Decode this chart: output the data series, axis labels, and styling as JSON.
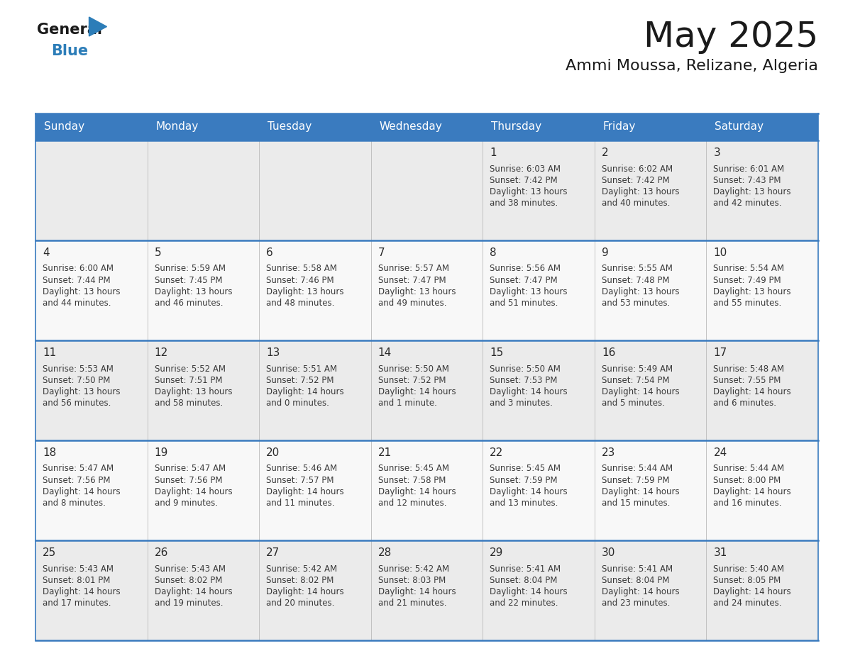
{
  "title": "May 2025",
  "subtitle": "Ammi Moussa, Relizane, Algeria",
  "header_color": "#3a7bbf",
  "header_text_color": "#ffffff",
  "day_names": [
    "Sunday",
    "Monday",
    "Tuesday",
    "Wednesday",
    "Thursday",
    "Friday",
    "Saturday"
  ],
  "bg_color": "#ffffff",
  "cell_bg_row0": "#ebebeb",
  "cell_bg_row1": "#f8f8f8",
  "text_color": "#333333",
  "line_color": "#3a7bbf",
  "calendar_data": [
    [
      {
        "day": "",
        "sunrise": "",
        "sunset": "",
        "daylight_h": "",
        "daylight_m": ""
      },
      {
        "day": "",
        "sunrise": "",
        "sunset": "",
        "daylight_h": "",
        "daylight_m": ""
      },
      {
        "day": "",
        "sunrise": "",
        "sunset": "",
        "daylight_h": "",
        "daylight_m": ""
      },
      {
        "day": "",
        "sunrise": "",
        "sunset": "",
        "daylight_h": "",
        "daylight_m": ""
      },
      {
        "day": "1",
        "sunrise": "6:03 AM",
        "sunset": "7:42 PM",
        "daylight_h": "13 hours",
        "daylight_m": "and 38 minutes."
      },
      {
        "day": "2",
        "sunrise": "6:02 AM",
        "sunset": "7:42 PM",
        "daylight_h": "13 hours",
        "daylight_m": "and 40 minutes."
      },
      {
        "day": "3",
        "sunrise": "6:01 AM",
        "sunset": "7:43 PM",
        "daylight_h": "13 hours",
        "daylight_m": "and 42 minutes."
      }
    ],
    [
      {
        "day": "4",
        "sunrise": "6:00 AM",
        "sunset": "7:44 PM",
        "daylight_h": "13 hours",
        "daylight_m": "and 44 minutes."
      },
      {
        "day": "5",
        "sunrise": "5:59 AM",
        "sunset": "7:45 PM",
        "daylight_h": "13 hours",
        "daylight_m": "and 46 minutes."
      },
      {
        "day": "6",
        "sunrise": "5:58 AM",
        "sunset": "7:46 PM",
        "daylight_h": "13 hours",
        "daylight_m": "and 48 minutes."
      },
      {
        "day": "7",
        "sunrise": "5:57 AM",
        "sunset": "7:47 PM",
        "daylight_h": "13 hours",
        "daylight_m": "and 49 minutes."
      },
      {
        "day": "8",
        "sunrise": "5:56 AM",
        "sunset": "7:47 PM",
        "daylight_h": "13 hours",
        "daylight_m": "and 51 minutes."
      },
      {
        "day": "9",
        "sunrise": "5:55 AM",
        "sunset": "7:48 PM",
        "daylight_h": "13 hours",
        "daylight_m": "and 53 minutes."
      },
      {
        "day": "10",
        "sunrise": "5:54 AM",
        "sunset": "7:49 PM",
        "daylight_h": "13 hours",
        "daylight_m": "and 55 minutes."
      }
    ],
    [
      {
        "day": "11",
        "sunrise": "5:53 AM",
        "sunset": "7:50 PM",
        "daylight_h": "13 hours",
        "daylight_m": "and 56 minutes."
      },
      {
        "day": "12",
        "sunrise": "5:52 AM",
        "sunset": "7:51 PM",
        "daylight_h": "13 hours",
        "daylight_m": "and 58 minutes."
      },
      {
        "day": "13",
        "sunrise": "5:51 AM",
        "sunset": "7:52 PM",
        "daylight_h": "14 hours",
        "daylight_m": "and 0 minutes."
      },
      {
        "day": "14",
        "sunrise": "5:50 AM",
        "sunset": "7:52 PM",
        "daylight_h": "14 hours",
        "daylight_m": "and 1 minute."
      },
      {
        "day": "15",
        "sunrise": "5:50 AM",
        "sunset": "7:53 PM",
        "daylight_h": "14 hours",
        "daylight_m": "and 3 minutes."
      },
      {
        "day": "16",
        "sunrise": "5:49 AM",
        "sunset": "7:54 PM",
        "daylight_h": "14 hours",
        "daylight_m": "and 5 minutes."
      },
      {
        "day": "17",
        "sunrise": "5:48 AM",
        "sunset": "7:55 PM",
        "daylight_h": "14 hours",
        "daylight_m": "and 6 minutes."
      }
    ],
    [
      {
        "day": "18",
        "sunrise": "5:47 AM",
        "sunset": "7:56 PM",
        "daylight_h": "14 hours",
        "daylight_m": "and 8 minutes."
      },
      {
        "day": "19",
        "sunrise": "5:47 AM",
        "sunset": "7:56 PM",
        "daylight_h": "14 hours",
        "daylight_m": "and 9 minutes."
      },
      {
        "day": "20",
        "sunrise": "5:46 AM",
        "sunset": "7:57 PM",
        "daylight_h": "14 hours",
        "daylight_m": "and 11 minutes."
      },
      {
        "day": "21",
        "sunrise": "5:45 AM",
        "sunset": "7:58 PM",
        "daylight_h": "14 hours",
        "daylight_m": "and 12 minutes."
      },
      {
        "day": "22",
        "sunrise": "5:45 AM",
        "sunset": "7:59 PM",
        "daylight_h": "14 hours",
        "daylight_m": "and 13 minutes."
      },
      {
        "day": "23",
        "sunrise": "5:44 AM",
        "sunset": "7:59 PM",
        "daylight_h": "14 hours",
        "daylight_m": "and 15 minutes."
      },
      {
        "day": "24",
        "sunrise": "5:44 AM",
        "sunset": "8:00 PM",
        "daylight_h": "14 hours",
        "daylight_m": "and 16 minutes."
      }
    ],
    [
      {
        "day": "25",
        "sunrise": "5:43 AM",
        "sunset": "8:01 PM",
        "daylight_h": "14 hours",
        "daylight_m": "and 17 minutes."
      },
      {
        "day": "26",
        "sunrise": "5:43 AM",
        "sunset": "8:02 PM",
        "daylight_h": "14 hours",
        "daylight_m": "and 19 minutes."
      },
      {
        "day": "27",
        "sunrise": "5:42 AM",
        "sunset": "8:02 PM",
        "daylight_h": "14 hours",
        "daylight_m": "and 20 minutes."
      },
      {
        "day": "28",
        "sunrise": "5:42 AM",
        "sunset": "8:03 PM",
        "daylight_h": "14 hours",
        "daylight_m": "and 21 minutes."
      },
      {
        "day": "29",
        "sunrise": "5:41 AM",
        "sunset": "8:04 PM",
        "daylight_h": "14 hours",
        "daylight_m": "and 22 minutes."
      },
      {
        "day": "30",
        "sunrise": "5:41 AM",
        "sunset": "8:04 PM",
        "daylight_h": "14 hours",
        "daylight_m": "and 23 minutes."
      },
      {
        "day": "31",
        "sunrise": "5:40 AM",
        "sunset": "8:05 PM",
        "daylight_h": "14 hours",
        "daylight_m": "and 24 minutes."
      }
    ]
  ]
}
